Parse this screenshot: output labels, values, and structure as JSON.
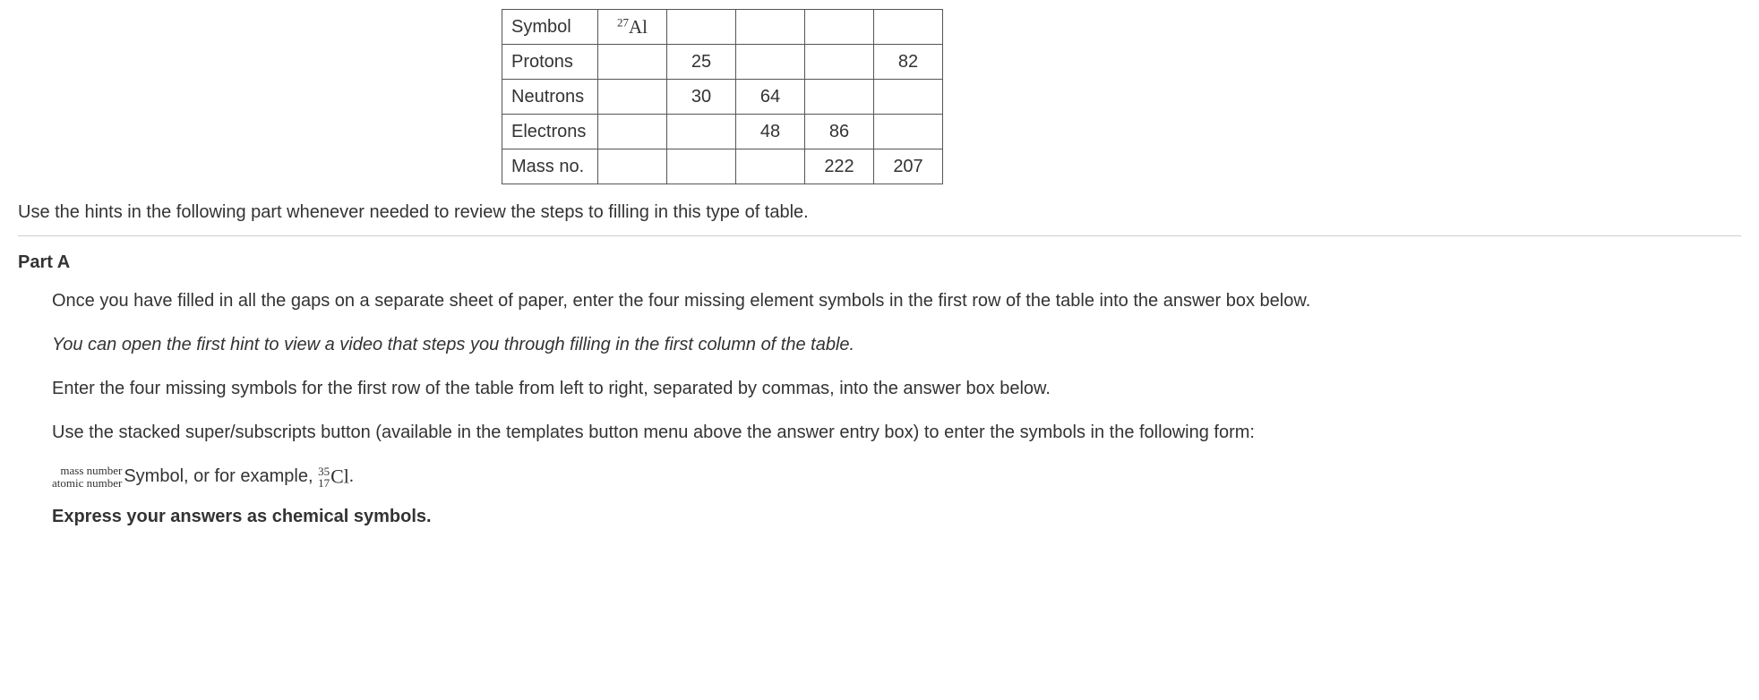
{
  "table": {
    "rows": [
      {
        "label": "Symbol",
        "cells": [
          "",
          "",
          "",
          "",
          ""
        ],
        "isotope": {
          "mass": "27",
          "elem": "Al"
        }
      },
      {
        "label": "Protons",
        "cells": [
          "",
          "25",
          "",
          "",
          "82"
        ]
      },
      {
        "label": "Neutrons",
        "cells": [
          "",
          "30",
          "64",
          "",
          ""
        ]
      },
      {
        "label": "Electrons",
        "cells": [
          "",
          "",
          "48",
          "86",
          ""
        ]
      },
      {
        "label": "Mass no.",
        "cells": [
          "",
          "",
          "",
          "222",
          "207"
        ]
      }
    ]
  },
  "intro": "Use the hints in the following part whenever needed to review the steps to filling in this type of table.",
  "partA": {
    "title": "Part A",
    "p1": "Once you have filled in all the gaps on a separate sheet of paper, enter the four missing element symbols in the first row of the table into the answer box below.",
    "p2": "You can open the first hint to view a video that steps you through filling in the first column of the table.",
    "p3": "Enter the four missing symbols for the first row of the table from left to right, separated by commas, into the answer box below.",
    "p4": "Use the stacked super/subscripts button (available in the templates button menu above the answer entry box) to enter the symbols in the following form:",
    "notation": {
      "top": "mass number",
      "bottom": "atomic number",
      "symbolWord": "Symbol",
      "sep": ", or for example, ",
      "exTop": "35",
      "exBottom": "17",
      "exElem": "Cl",
      "period": "."
    },
    "p5": "Express your answers as chemical symbols."
  }
}
